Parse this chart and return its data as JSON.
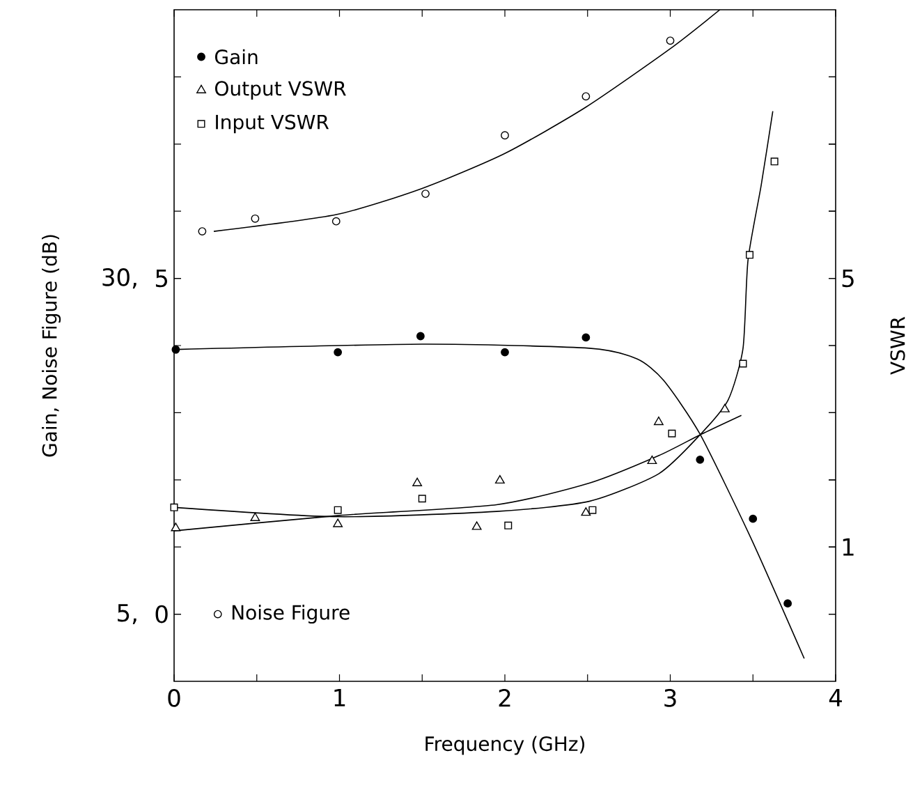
{
  "chart_data": {
    "type": "scatter",
    "xlabel": "Frequency (GHz)",
    "ylabel": "Gain, Noise Figure (dB)",
    "y2label": "VSWR",
    "xlim": [
      0,
      4
    ],
    "xticks": [
      0,
      {
        "value": 0.5,
        "label": null
      },
      1,
      {
        "value": 1.5,
        "label": null
      },
      2,
      {
        "value": 2.5,
        "label": null
      },
      3,
      {
        "value": 3.5,
        "label": null
      },
      4
    ],
    "ylim": [
      0,
      50
    ],
    "yticks": [
      {
        "value": 5,
        "label": "5,"
      },
      {
        "value": 10,
        "label": null
      },
      {
        "value": 15,
        "label": null
      },
      {
        "value": 20,
        "label": null
      },
      {
        "value": 25,
        "label": null
      },
      {
        "value": 30,
        "label": "30,"
      },
      {
        "value": 35,
        "label": null
      },
      {
        "value": 40,
        "label": null
      },
      {
        "value": 45,
        "label": null
      }
    ],
    "y2lim": [
      -1,
      9
    ],
    "y2ticks": [
      {
        "value": 0,
        "label": null
      },
      1,
      {
        "value": 2,
        "label": null
      },
      {
        "value": 3,
        "label": null
      },
      {
        "value": 4,
        "label": null
      },
      5,
      {
        "value": 6,
        "label": null
      },
      {
        "value": 7,
        "label": null
      },
      {
        "value": 8,
        "label": null
      }
    ],
    "y3lim": [
      -1,
      9
    ],
    "y3ticks": [
      0,
      5
    ],
    "legend": "top left",
    "grid": false,
    "series": [
      {
        "name": "Gain",
        "marker": "circle",
        "color": "#000000",
        "x": [
          0.01,
          0.99,
          1.49,
          2.0,
          2.49,
          3.18,
          3.5,
          3.71
        ],
        "values": [
          24.7,
          24.5,
          25.7,
          24.5,
          25.6,
          16.5,
          12.1,
          5.8
        ]
      },
      {
        "name": "Output VSWR",
        "axis": "y2",
        "marker": "triangle",
        "color": "#000000",
        "x": [
          0.01,
          0.49,
          0.99,
          1.47,
          1.83,
          1.97,
          2.49,
          2.89,
          2.93,
          3.33
        ],
        "values": [
          1.28,
          1.43,
          1.34,
          1.95,
          1.3,
          1.99,
          1.51,
          2.28,
          2.86,
          3.05
        ]
      },
      {
        "name": "Input VSWR",
        "axis": "y2",
        "marker": "square",
        "color": "#000000",
        "x": [
          0.0,
          0.99,
          1.5,
          2.02,
          2.53,
          3.01,
          3.44,
          3.48,
          3.63
        ],
        "values": [
          1.59,
          1.55,
          1.72,
          1.32,
          1.55,
          2.69,
          3.73,
          5.35,
          6.74
        ]
      },
      {
        "name": "Noise Figure",
        "axis": "y3",
        "marker": "circle",
        "color": "#000000",
        "x": [
          0.17,
          0.49,
          0.98,
          1.52,
          2.0,
          2.49,
          3.0
        ],
        "values": [
          5.7,
          5.89,
          5.85,
          6.26,
          7.13,
          7.71,
          8.54
        ]
      },
      {
        "type": "line",
        "marker": "none",
        "color": "#000000",
        "x": [
          0,
          1.5,
          2.51,
          2.8,
          2.96,
          3.18,
          3.49,
          3.81
        ],
        "values": [
          24.7,
          25.1,
          24.8,
          24.0,
          22.4,
          18.4,
          10.6,
          1.7
        ]
      },
      {
        "type": "line",
        "axis": "y2",
        "marker": "none",
        "color": "#000000",
        "x": [
          0,
          1,
          1.95,
          2.51,
          2.93,
          3.18,
          3.43
        ],
        "values": [
          1.24,
          1.47,
          1.63,
          1.95,
          2.36,
          2.67,
          2.96
        ]
      },
      {
        "type": "line",
        "axis": "y2",
        "marker": "none",
        "color": "#000000",
        "x": [
          0,
          0.99,
          1.95,
          2.51,
          2.93,
          3.18,
          3.35,
          3.44,
          3.47,
          3.55,
          3.62
        ],
        "values": [
          1.59,
          1.45,
          1.53,
          1.68,
          2.09,
          2.67,
          3.19,
          3.96,
          5.27,
          6.39,
          7.49
        ]
      },
      {
        "type": "line",
        "axis": "y3",
        "marker": "none",
        "color": "#000000",
        "x": [
          0.24,
          0.98,
          1.5,
          2.0,
          2.49,
          3.0,
          3.3
        ],
        "values": [
          5.7,
          5.95,
          6.34,
          6.86,
          7.55,
          8.42,
          9.0
        ]
      }
    ]
  }
}
